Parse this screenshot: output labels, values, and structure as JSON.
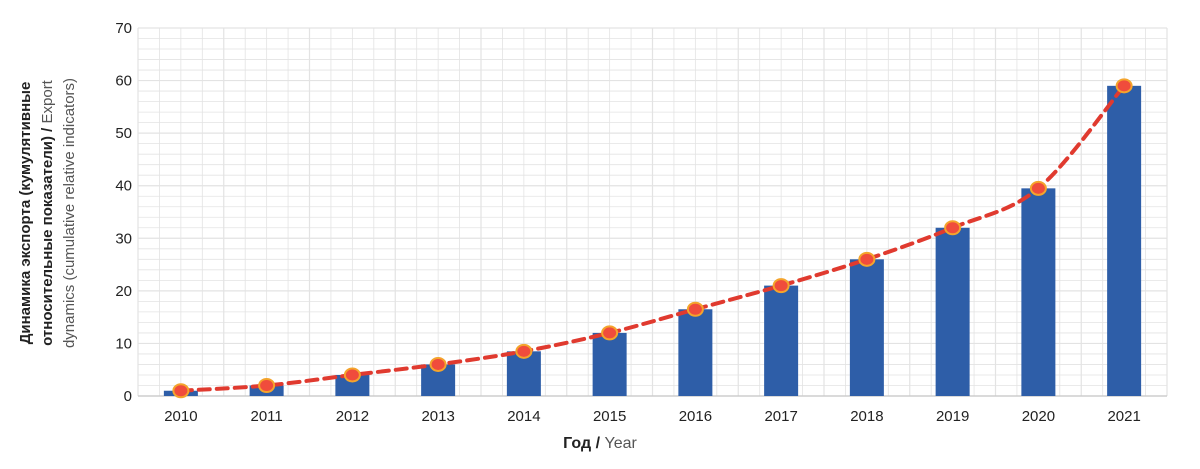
{
  "chart_data": {
    "type": "bar",
    "title": "",
    "categories": [
      "2010",
      "2011",
      "2012",
      "2013",
      "2014",
      "2015",
      "2016",
      "2017",
      "2018",
      "2019",
      "2020",
      "2021"
    ],
    "series": [
      {
        "type": "bar",
        "values": [
          1,
          2,
          4,
          6,
          8.5,
          12,
          16.5,
          21,
          26,
          32,
          39.5,
          59
        ]
      },
      {
        "type": "line",
        "style": "dashed",
        "values": [
          1,
          2,
          4,
          6,
          8.5,
          12,
          16.5,
          21,
          26,
          32,
          39.5,
          59
        ]
      }
    ],
    "xlabel": {
      "primary": "Год",
      "separator": " / ",
      "secondary": "Year"
    },
    "ylabel": {
      "line1": "Динамика экспорта (кумулятивные",
      "line2_primary": "относительные показатели)",
      "line2_separator": " / ",
      "line2_secondary": "Export",
      "line3": "dynamics (cumulative relative indicators)"
    },
    "ylim": [
      0,
      70
    ],
    "yticks": [
      0,
      10,
      20,
      30,
      40,
      50,
      60,
      70
    ],
    "grid": true,
    "legend": "none",
    "colors": {
      "bar": "#2e5ea8",
      "line": "#e03a2f",
      "marker_fill": "#f04c3c",
      "marker_stroke": "#f4a42c",
      "grid": "#e3e3e3"
    }
  }
}
